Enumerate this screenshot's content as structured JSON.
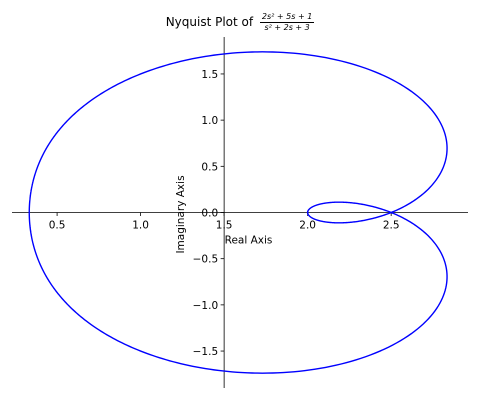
{
  "chart_data": {
    "type": "line",
    "title_prefix": "Nyquist Plot of",
    "title_numerator": "2s² + 5s + 1",
    "title_denominator": "s² + 2s + 3",
    "transfer_function": {
      "numerator": [
        2,
        5,
        1
      ],
      "denominator": [
        1,
        2,
        3
      ]
    },
    "xlabel": "Real Axis",
    "ylabel": "Imaginary Axis",
    "xlim": [
      0.23,
      2.96
    ],
    "ylim": [
      -1.9,
      1.9
    ],
    "x_ticks": [
      {
        "value": 0.5,
        "label": "0.5"
      },
      {
        "value": 1.0,
        "label": "1.0"
      },
      {
        "value": 1.5,
        "label": "1.5"
      },
      {
        "value": 2.0,
        "label": "2.0"
      },
      {
        "value": 2.5,
        "label": "2.5"
      }
    ],
    "y_ticks": [
      {
        "value": 1.5,
        "label": "1.5"
      },
      {
        "value": 1.0,
        "label": "1.0"
      },
      {
        "value": 0.5,
        "label": "0.5"
      },
      {
        "value": 0.0,
        "label": "0.0"
      },
      {
        "value": -0.5,
        "label": "−0.5"
      },
      {
        "value": -1.0,
        "label": "−1.0"
      },
      {
        "value": -1.5,
        "label": "−1.5"
      }
    ],
    "grid": false,
    "series": [
      {
        "color": "#0000ff",
        "samples": [
          {
            "x": 0.333,
            "y": 0.0
          },
          {
            "x": 0.355,
            "y": 0.47
          },
          {
            "x": 0.485,
            "y": 0.94
          },
          {
            "x": 0.69,
            "y": 1.27
          },
          {
            "x": 1.0,
            "y": 1.5
          },
          {
            "x": 1.29,
            "y": 1.66
          },
          {
            "x": 1.72,
            "y": 1.73
          },
          {
            "x": 2.14,
            "y": 1.64
          },
          {
            "x": 2.5,
            "y": 1.41
          },
          {
            "x": 2.75,
            "y": 1.06
          },
          {
            "x": 2.83,
            "y": 0.68
          },
          {
            "x": 2.75,
            "y": 0.33
          },
          {
            "x": 2.5,
            "y": 0.0
          },
          {
            "x": 2.19,
            "y": 0.11
          },
          {
            "x": 2.0,
            "y": 0.0
          },
          {
            "x": 2.19,
            "y": -0.11
          },
          {
            "x": 2.5,
            "y": 0.0
          },
          {
            "x": 2.75,
            "y": -0.33
          },
          {
            "x": 2.83,
            "y": -0.68
          },
          {
            "x": 2.75,
            "y": -1.06
          },
          {
            "x": 2.5,
            "y": -1.41
          },
          {
            "x": 2.14,
            "y": -1.64
          },
          {
            "x": 1.72,
            "y": -1.73
          },
          {
            "x": 1.29,
            "y": -1.66
          },
          {
            "x": 1.0,
            "y": -1.5
          },
          {
            "x": 0.69,
            "y": -1.27
          },
          {
            "x": 0.485,
            "y": -0.94
          },
          {
            "x": 0.355,
            "y": -0.47
          },
          {
            "x": 0.333,
            "y": 0.0
          }
        ]
      }
    ]
  }
}
